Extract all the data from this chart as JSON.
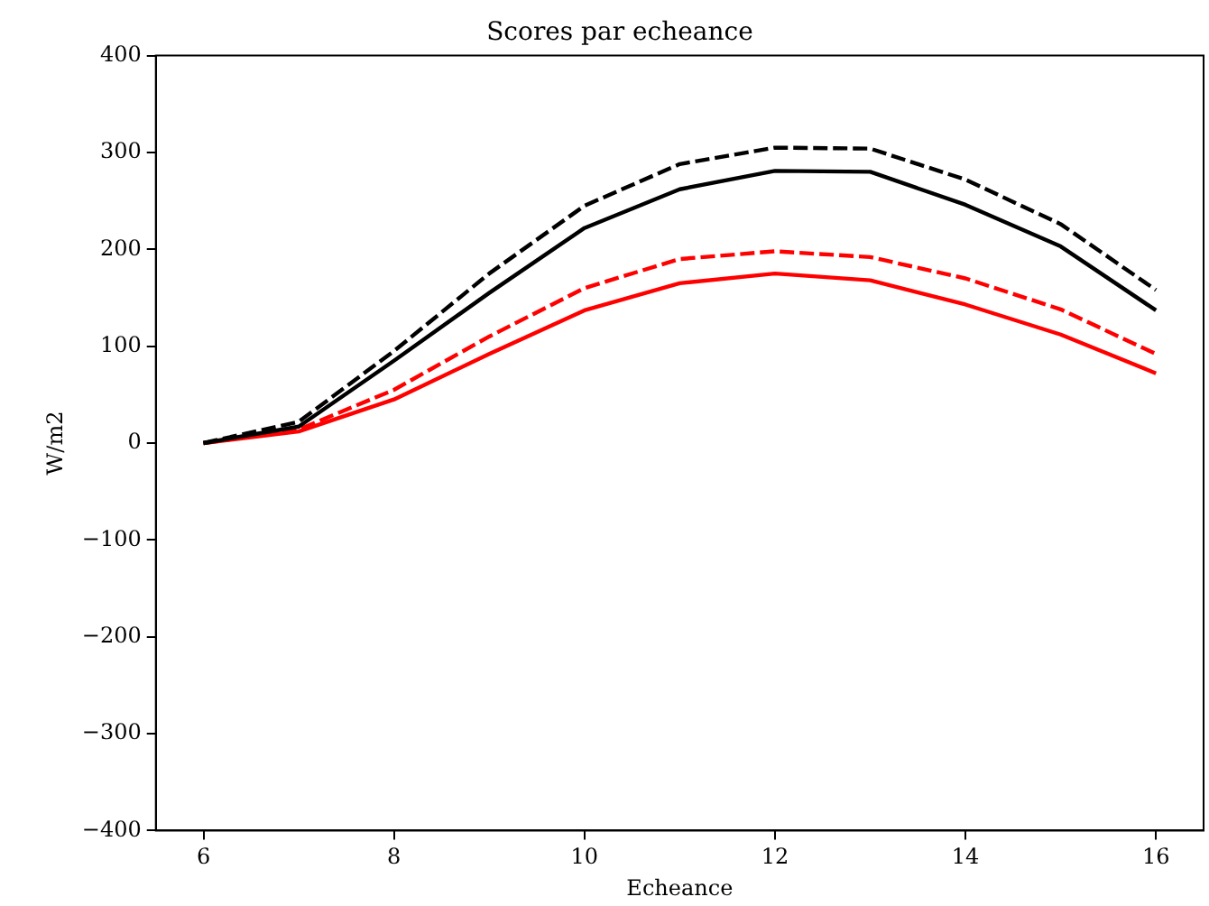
{
  "chart_data": {
    "type": "line",
    "title": "Scores par echeance",
    "xlabel": "Echeance",
    "ylabel": "W/m2",
    "x": [
      6,
      7,
      8,
      9,
      10,
      11,
      12,
      13,
      14,
      15,
      16
    ],
    "series": [
      {
        "color": "#000000",
        "line_style": "dashed",
        "values": [
          0,
          22,
          95,
          175,
          245,
          288,
          305,
          304,
          272,
          226,
          158
        ]
      },
      {
        "color": "#000000",
        "line_style": "solid",
        "values": [
          0,
          17,
          85,
          155,
          222,
          262,
          281,
          280,
          246,
          203,
          137
        ]
      },
      {
        "color": "#ff0000",
        "line_style": "dashed",
        "values": [
          0,
          14,
          55,
          110,
          160,
          190,
          198,
          192,
          170,
          138,
          92
        ]
      },
      {
        "color": "#ff0000",
        "line_style": "solid",
        "values": [
          0,
          12,
          45,
          92,
          137,
          165,
          175,
          168,
          143,
          112,
          72
        ]
      }
    ],
    "xlim": [
      5.5,
      16.5
    ],
    "xticks": [
      6,
      8,
      10,
      12,
      14,
      16
    ],
    "ylim": [
      -400,
      400
    ],
    "yticks": [
      -400,
      -300,
      -200,
      -100,
      0,
      100,
      200,
      300,
      400
    ],
    "grid": false,
    "legend": false,
    "marker": "none"
  }
}
